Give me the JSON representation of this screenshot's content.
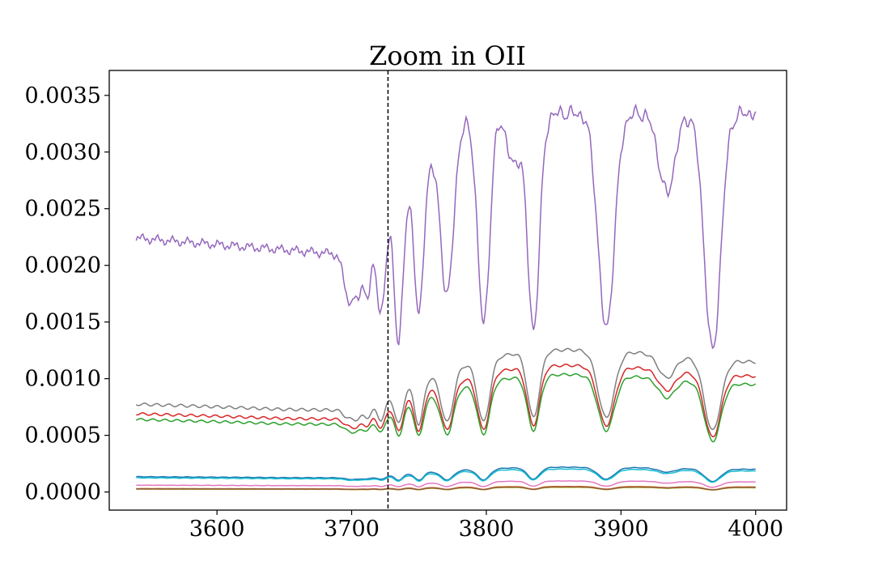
{
  "chart_data": {
    "type": "line",
    "title": "Zoom in OII",
    "xlabel": "",
    "ylabel": "",
    "xlim": [
      3520,
      4023
    ],
    "ylim": [
      -0.00016,
      0.00372
    ],
    "x_ticks": [
      3600,
      3700,
      3800,
      3900,
      4000
    ],
    "x_tick_labels": [
      "3600",
      "3700",
      "3800",
      "3900",
      "4000"
    ],
    "y_ticks": [
      0.0,
      0.0005,
      0.001,
      0.0015,
      0.002,
      0.0025,
      0.003,
      0.0035
    ],
    "y_tick_labels": [
      "0.0000",
      "0.0005",
      "0.0010",
      "0.0015",
      "0.0020",
      "0.0025",
      "0.0030",
      "0.0035"
    ],
    "grid": false,
    "vline": {
      "x": 3727,
      "style": "dashed",
      "color": "#000000"
    },
    "x_start": 3540,
    "x_end": 4000,
    "continuum_x": [
      3540,
      3600,
      3650,
      3700,
      3720,
      3740,
      3760,
      3780,
      3800,
      3830,
      3860,
      3890,
      3910,
      3940,
      3970,
      4000
    ],
    "continuum_shape": [
      1.0,
      0.97,
      0.94,
      0.93,
      1.07,
      1.2,
      1.32,
      1.43,
      1.52,
      1.6,
      1.62,
      1.6,
      1.59,
      1.55,
      1.5,
      1.48
    ],
    "absorption_lines": [
      {
        "center": 3697,
        "depth": 0.06
      },
      {
        "center": 3704,
        "depth": 0.09
      },
      {
        "center": 3712,
        "depth": 0.12
      },
      {
        "center": 3722,
        "depth": 0.2
      },
      {
        "center": 3735,
        "depth": 0.3
      },
      {
        "center": 3750,
        "depth": 0.38
      },
      {
        "center": 3771,
        "depth": 0.45
      },
      {
        "center": 3798,
        "depth": 0.55
      },
      {
        "center": 3835,
        "depth": 0.58
      },
      {
        "center": 3889,
        "depth": 0.58
      },
      {
        "center": 3934,
        "depth": 0.2
      },
      {
        "center": 3968,
        "depth": 0.62
      }
    ],
    "series": [
      {
        "color": "#9467bd",
        "base": 0.00224,
        "lines": [
          {
            "center": 3697,
            "depth": 0.00035
          },
          {
            "center": 3704,
            "depth": 0.0004
          },
          {
            "center": 3712,
            "depth": 0.00048
          },
          {
            "center": 3722,
            "depth": 0.0008
          },
          {
            "center": 3735,
            "depth": 0.00125
          },
          {
            "center": 3750,
            "depth": 0.00125
          },
          {
            "center": 3771,
            "depth": 0.00135
          },
          {
            "center": 3798,
            "depth": 0.00185
          },
          {
            "center": 3820,
            "depth": 0.00045
          },
          {
            "center": 3835,
            "depth": 0.0019
          },
          {
            "center": 3889,
            "depth": 0.0019
          },
          {
            "center": 3934,
            "depth": 0.0007
          },
          {
            "center": 3968,
            "depth": 0.0021
          }
        ]
      },
      {
        "color": "#7f7f7f",
        "base": 0.000775
      },
      {
        "color": "#d62728",
        "base": 0.00069
      },
      {
        "color": "#2ca02c",
        "base": 0.00064
      },
      {
        "color": "#1f77b4",
        "base": 0.000135
      },
      {
        "color": "#17becf",
        "base": 0.000125
      },
      {
        "color": "#e377c2",
        "base": 6e-05
      },
      {
        "color": "#ff7f0e",
        "base": 3e-05
      },
      {
        "color": "#bcbd22",
        "base": 2.5e-05
      },
      {
        "color": "#8c564b",
        "base": 2.8e-05
      }
    ]
  }
}
